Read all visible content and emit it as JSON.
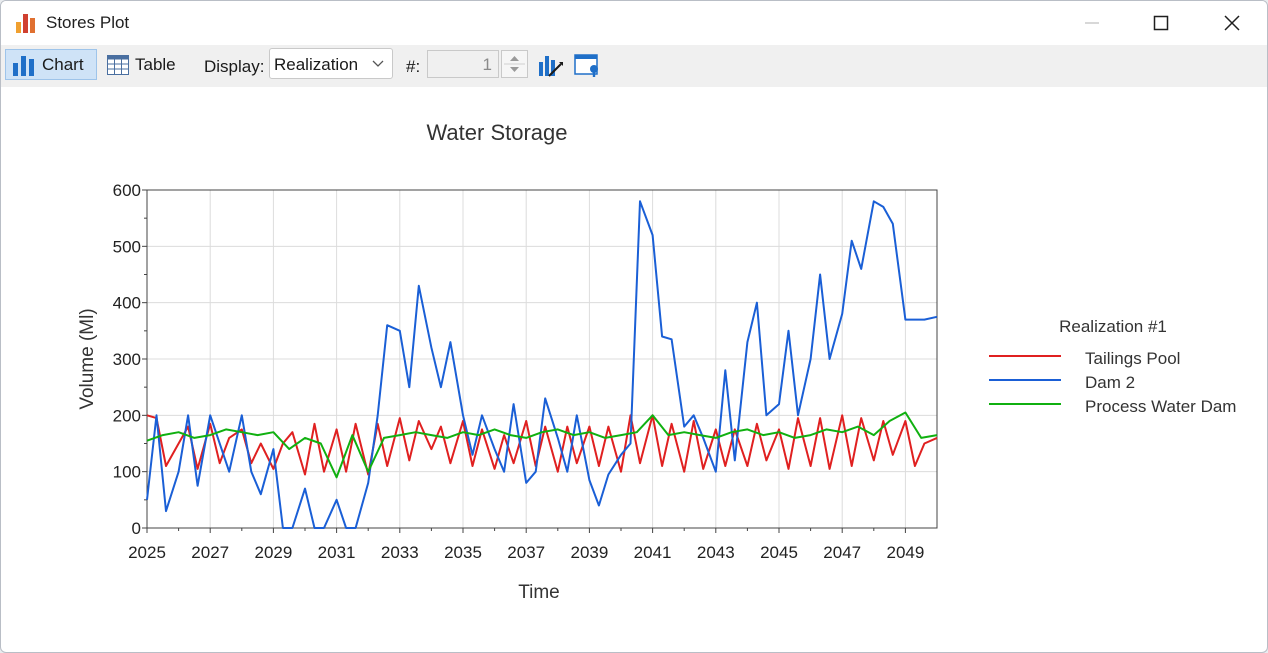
{
  "window": {
    "title": "Stores Plot",
    "app_icon": "bar-chart-icon"
  },
  "toolbar": {
    "chart_label": "Chart",
    "table_label": "Table",
    "display_label": "Display:",
    "display_value": "Realization",
    "number_label": "#:",
    "number_value": "1"
  },
  "chart_data": {
    "type": "line",
    "title": "Water Storage",
    "xlabel": "Time",
    "ylabel": "Volume (Ml)",
    "xlim": [
      2025,
      2050
    ],
    "ylim": [
      0,
      600
    ],
    "x_ticks": [
      "2025",
      "2027",
      "2029",
      "2031",
      "2033",
      "2035",
      "2037",
      "2039",
      "2041",
      "2043",
      "2045",
      "2047",
      "2049"
    ],
    "y_ticks": [
      "0",
      "100",
      "200",
      "300",
      "400",
      "500",
      "600"
    ],
    "grid": true,
    "legend_title": "Realization #1",
    "legend_position": "right",
    "series": [
      {
        "name": "Tailings Pool",
        "color": "#e02020",
        "x": [
          2025,
          2025.3,
          2025.6,
          2026.0,
          2026.3,
          2026.6,
          2027.0,
          2027.3,
          2027.6,
          2028.0,
          2028.3,
          2028.6,
          2029.0,
          2029.3,
          2029.6,
          2030.0,
          2030.3,
          2030.6,
          2031.0,
          2031.3,
          2031.6,
          2032.0,
          2032.3,
          2032.6,
          2033.0,
          2033.3,
          2033.6,
          2034.0,
          2034.3,
          2034.6,
          2035.0,
          2035.3,
          2035.6,
          2036.0,
          2036.3,
          2036.6,
          2037.0,
          2037.3,
          2037.6,
          2038.0,
          2038.3,
          2038.6,
          2039.0,
          2039.3,
          2039.6,
          2040.0,
          2040.3,
          2040.6,
          2041.0,
          2041.3,
          2041.6,
          2042.0,
          2042.3,
          2042.6,
          2043.0,
          2043.3,
          2043.6,
          2044.0,
          2044.3,
          2044.6,
          2045.0,
          2045.3,
          2045.6,
          2046.0,
          2046.3,
          2046.6,
          2047.0,
          2047.3,
          2047.6,
          2048.0,
          2048.3,
          2048.6,
          2049.0,
          2049.3,
          2049.6,
          2050.0
        ],
        "values": [
          200,
          195,
          110,
          150,
          180,
          105,
          185,
          115,
          160,
          175,
          115,
          150,
          105,
          150,
          170,
          95,
          185,
          100,
          175,
          100,
          185,
          95,
          185,
          110,
          195,
          120,
          190,
          140,
          180,
          115,
          190,
          110,
          175,
          105,
          165,
          115,
          190,
          110,
          180,
          100,
          180,
          115,
          180,
          110,
          180,
          100,
          200,
          115,
          200,
          110,
          185,
          100,
          190,
          105,
          175,
          110,
          175,
          110,
          185,
          120,
          175,
          105,
          195,
          110,
          195,
          105,
          200,
          110,
          195,
          120,
          190,
          130,
          190,
          110,
          150,
          160
        ]
      },
      {
        "name": "Dam 2",
        "color": "#1a5fd6",
        "x": [
          2025,
          2025.3,
          2025.6,
          2026.0,
          2026.3,
          2026.6,
          2027.0,
          2027.3,
          2027.6,
          2028.0,
          2028.3,
          2028.6,
          2029.0,
          2029.3,
          2029.6,
          2030.0,
          2030.3,
          2030.6,
          2031.0,
          2031.3,
          2031.6,
          2032.0,
          2032.3,
          2032.6,
          2033.0,
          2033.3,
          2033.6,
          2034.0,
          2034.3,
          2034.6,
          2035.0,
          2035.3,
          2035.6,
          2036.0,
          2036.3,
          2036.6,
          2037.0,
          2037.3,
          2037.6,
          2038.0,
          2038.3,
          2038.6,
          2039.0,
          2039.3,
          2039.6,
          2040.0,
          2040.3,
          2040.6,
          2041.0,
          2041.3,
          2041.6,
          2042.0,
          2042.3,
          2042.6,
          2043.0,
          2043.3,
          2043.6,
          2044.0,
          2044.3,
          2044.6,
          2045.0,
          2045.3,
          2045.6,
          2046.0,
          2046.3,
          2046.6,
          2047.0,
          2047.3,
          2047.6,
          2048.0,
          2048.3,
          2048.6,
          2049.0,
          2049.3,
          2049.6,
          2050.0
        ],
        "values": [
          50,
          200,
          30,
          100,
          200,
          75,
          200,
          150,
          100,
          200,
          100,
          60,
          140,
          0,
          0,
          70,
          0,
          0,
          50,
          0,
          0,
          80,
          200,
          360,
          350,
          250,
          430,
          320,
          250,
          330,
          200,
          130,
          200,
          140,
          100,
          220,
          80,
          100,
          230,
          160,
          100,
          200,
          85,
          40,
          95,
          130,
          150,
          580,
          520,
          340,
          335,
          180,
          200,
          160,
          100,
          280,
          120,
          330,
          400,
          200,
          220,
          350,
          200,
          300,
          450,
          300,
          380,
          510,
          460,
          580,
          570,
          540,
          370,
          370,
          370,
          375
        ]
      },
      {
        "name": "Process Water Dam",
        "color": "#10b010",
        "x": [
          2025,
          2025.5,
          2026,
          2026.5,
          2027,
          2027.5,
          2028,
          2028.5,
          2029,
          2029.5,
          2030,
          2030.5,
          2031,
          2031.5,
          2032,
          2032.5,
          2033,
          2033.5,
          2034,
          2034.5,
          2035,
          2035.5,
          2036,
          2036.5,
          2037,
          2037.5,
          2038,
          2038.5,
          2039,
          2039.5,
          2040,
          2040.5,
          2041,
          2041.5,
          2042,
          2042.5,
          2043,
          2043.5,
          2044,
          2044.5,
          2045,
          2045.5,
          2046,
          2046.5,
          2047,
          2047.5,
          2048,
          2048.5,
          2049,
          2049.5,
          2050
        ],
        "values": [
          155,
          165,
          170,
          160,
          165,
          175,
          170,
          165,
          170,
          140,
          160,
          150,
          90,
          165,
          100,
          160,
          165,
          170,
          165,
          160,
          170,
          165,
          175,
          165,
          160,
          170,
          175,
          165,
          170,
          160,
          165,
          170,
          200,
          165,
          170,
          165,
          160,
          170,
          175,
          165,
          170,
          160,
          165,
          175,
          170,
          180,
          165,
          190,
          205,
          160,
          165
        ]
      }
    ]
  }
}
